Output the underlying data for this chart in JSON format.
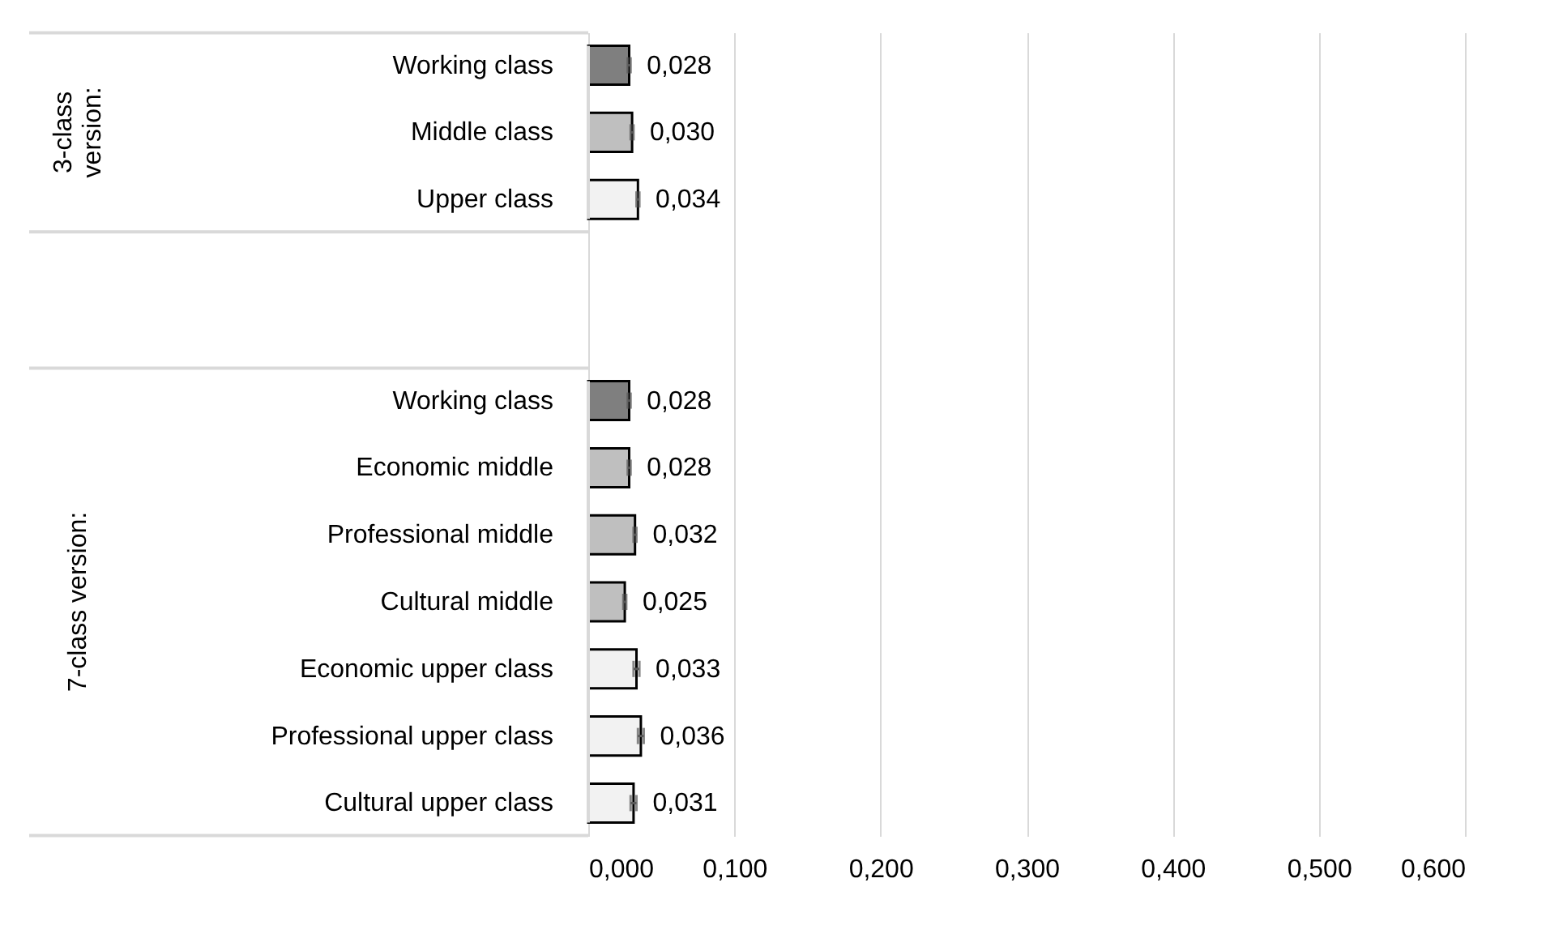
{
  "chart_data": {
    "type": "bar",
    "orientation": "horizontal",
    "categories": [
      "Working class",
      "Middle class",
      "Upper class",
      null,
      null,
      "Working class",
      "Economic middle",
      "Professional middle",
      "Cultural middle",
      "Economic upper class",
      "Professional upper class",
      "Cultural upper class"
    ],
    "values": [
      0.028,
      0.03,
      0.034,
      null,
      null,
      0.028,
      0.028,
      0.032,
      0.025,
      0.033,
      0.036,
      0.031
    ],
    "errors": [
      0.001,
      0.001,
      0.001,
      null,
      null,
      0.001,
      0.001,
      0.001,
      0.001,
      0.002,
      0.002,
      0.002
    ],
    "colors": [
      "#7f7f7f",
      "#bfbfbf",
      "#f2f2f2",
      null,
      null,
      "#7f7f7f",
      "#bfbfbf",
      "#bfbfbf",
      "#bfbfbf",
      "#f2f2f2",
      "#f2f2f2",
      "#f2f2f2"
    ],
    "value_labels": [
      "0,028",
      "0,030",
      "0,034",
      null,
      null,
      "0,028",
      "0,028",
      "0,032",
      "0,025",
      "0,033",
      "0,036",
      "0,031"
    ],
    "annotations": [
      "3-class version:",
      "7-class version:"
    ],
    "xlim": [
      0,
      0.6
    ],
    "xticks": [
      {
        "value": 0,
        "label": "0,000"
      },
      {
        "value": 0.1,
        "label": "0,100"
      },
      {
        "value": 0.2,
        "label": "0,200"
      },
      {
        "value": 0.3,
        "label": "0,300"
      },
      {
        "value": 0.4,
        "label": "0,400"
      },
      {
        "value": 0.5,
        "label": "0,500"
      },
      {
        "value": 0.6,
        "label": "0,600"
      }
    ],
    "grid": "x"
  }
}
